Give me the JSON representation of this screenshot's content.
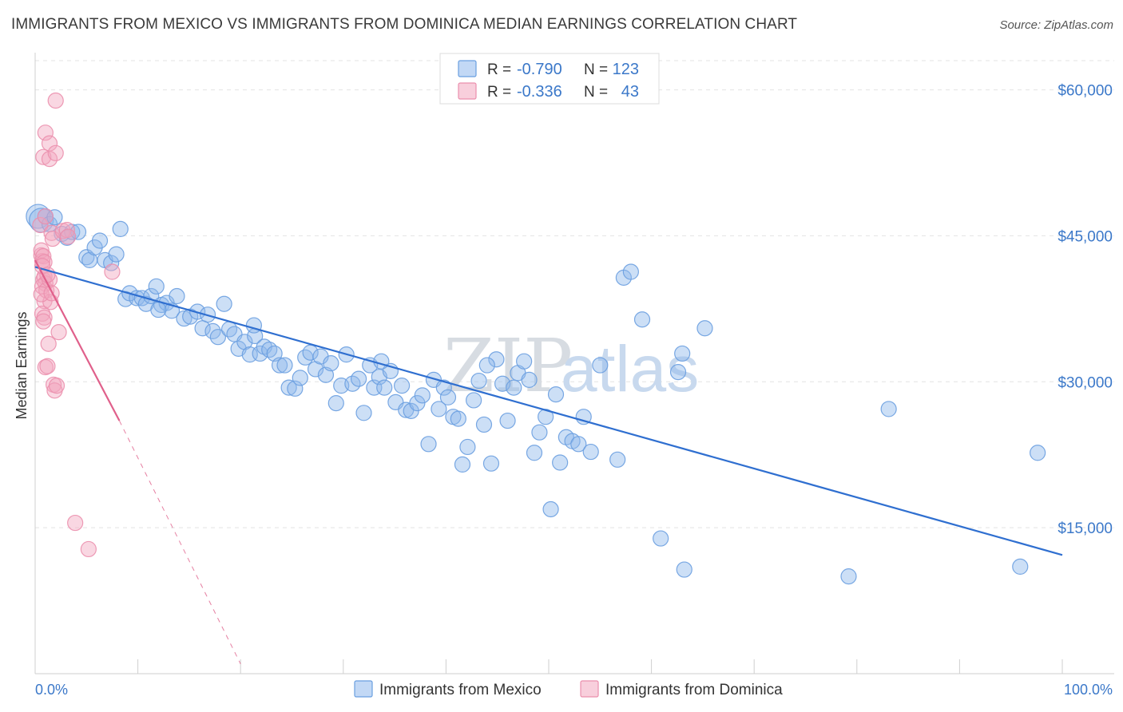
{
  "title": "IMMIGRANTS FROM MEXICO VS IMMIGRANTS FROM DOMINICA MEDIAN EARNINGS CORRELATION CHART",
  "source": "Source: ZipAtlas.com",
  "watermark": {
    "zip": "ZIP",
    "atlas": "atlas"
  },
  "legend_top": [
    {
      "r_label": "R = ",
      "r_value": "-0.790",
      "n_label": "N = ",
      "n_value": "123",
      "color": "#8fb8ec"
    },
    {
      "r_label": "R = ",
      "r_value": "-0.336",
      "n_label": "N = ",
      "n_value": "43",
      "color": "#f2a7bf"
    }
  ],
  "legend_bottom": [
    {
      "label": "Immigrants from Mexico",
      "color": "#8fb8ec"
    },
    {
      "label": "Immigrants from Dominica",
      "color": "#f2a7bf"
    }
  ],
  "chart_data": {
    "type": "scatter",
    "title": "IMMIGRANTS FROM MEXICO VS IMMIGRANTS FROM DOMINICA MEDIAN EARNINGS CORRELATION CHART",
    "xlabel": "",
    "ylabel": "Median Earnings",
    "x_tick_labels": [
      "0.0%",
      "100.0%"
    ],
    "y_tick_labels": [
      "$15,000",
      "$30,000",
      "$45,000",
      "$60,000"
    ],
    "y_ticks": [
      15000,
      30000,
      45000,
      60000
    ],
    "xlim": [
      0,
      100
    ],
    "ylim": [
      0,
      63000
    ],
    "grid": true,
    "series": [
      {
        "name": "Immigrants from Mexico",
        "color": "#8fb8ec",
        "line_color": "#2f6fd0",
        "trend": {
          "x": [
            0,
            100
          ],
          "y": [
            41800,
            12200
          ],
          "dashed_from": null
        },
        "points": [
          [
            0.3,
            47000
          ],
          [
            0.6,
            46600
          ],
          [
            1.0,
            47000
          ],
          [
            1.4,
            46200
          ],
          [
            1.9,
            46900
          ],
          [
            2.6,
            45200
          ],
          [
            3.1,
            44800
          ],
          [
            3.6,
            45400
          ],
          [
            4.2,
            45400
          ],
          [
            5.0,
            42800
          ],
          [
            5.3,
            42500
          ],
          [
            5.8,
            43800
          ],
          [
            6.3,
            44500
          ],
          [
            6.8,
            42500
          ],
          [
            7.4,
            42200
          ],
          [
            7.9,
            43100
          ],
          [
            8.3,
            45700
          ],
          [
            8.8,
            38500
          ],
          [
            9.2,
            39100
          ],
          [
            9.9,
            38600
          ],
          [
            10.4,
            38600
          ],
          [
            10.8,
            38000
          ],
          [
            11.3,
            38800
          ],
          [
            11.8,
            39800
          ],
          [
            12.3,
            37900
          ],
          [
            12.8,
            38100
          ],
          [
            13.3,
            37300
          ],
          [
            13.8,
            38800
          ],
          [
            14.5,
            36500
          ],
          [
            15.1,
            36700
          ],
          [
            15.8,
            37200
          ],
          [
            16.3,
            35500
          ],
          [
            16.8,
            36900
          ],
          [
            17.3,
            35200
          ],
          [
            17.8,
            34600
          ],
          [
            18.4,
            38000
          ],
          [
            18.9,
            35400
          ],
          [
            19.4,
            34900
          ],
          [
            19.8,
            33400
          ],
          [
            20.4,
            34100
          ],
          [
            20.9,
            32800
          ],
          [
            21.4,
            34700
          ],
          [
            21.9,
            32900
          ],
          [
            22.3,
            33600
          ],
          [
            22.8,
            33300
          ],
          [
            23.3,
            32900
          ],
          [
            23.8,
            31700
          ],
          [
            24.3,
            31700
          ],
          [
            24.7,
            29400
          ],
          [
            25.3,
            29300
          ],
          [
            25.8,
            30400
          ],
          [
            26.3,
            32500
          ],
          [
            26.8,
            33000
          ],
          [
            27.3,
            31300
          ],
          [
            27.8,
            32600
          ],
          [
            28.3,
            30700
          ],
          [
            28.8,
            31900
          ],
          [
            29.3,
            27800
          ],
          [
            29.8,
            29600
          ],
          [
            30.3,
            32800
          ],
          [
            30.9,
            29800
          ],
          [
            31.5,
            30300
          ],
          [
            32.0,
            26800
          ],
          [
            32.6,
            31700
          ],
          [
            33.0,
            29400
          ],
          [
            33.5,
            30500
          ],
          [
            34.0,
            29400
          ],
          [
            34.6,
            31100
          ],
          [
            35.1,
            27900
          ],
          [
            35.7,
            29600
          ],
          [
            36.1,
            27100
          ],
          [
            36.6,
            27000
          ],
          [
            37.2,
            27800
          ],
          [
            37.7,
            28600
          ],
          [
            38.3,
            23600
          ],
          [
            38.8,
            30200
          ],
          [
            39.3,
            27200
          ],
          [
            39.8,
            29400
          ],
          [
            40.2,
            28400
          ],
          [
            40.7,
            26400
          ],
          [
            41.2,
            26200
          ],
          [
            41.6,
            21500
          ],
          [
            42.1,
            23300
          ],
          [
            42.7,
            28100
          ],
          [
            43.2,
            30100
          ],
          [
            43.7,
            25600
          ],
          [
            44.4,
            21600
          ],
          [
            44.9,
            32300
          ],
          [
            45.5,
            29800
          ],
          [
            46.0,
            26000
          ],
          [
            46.6,
            29400
          ],
          [
            47.0,
            30900
          ],
          [
            47.6,
            32100
          ],
          [
            48.1,
            30200
          ],
          [
            48.6,
            22700
          ],
          [
            49.1,
            24800
          ],
          [
            49.7,
            26400
          ],
          [
            50.2,
            16900
          ],
          [
            50.7,
            28700
          ],
          [
            51.1,
            21700
          ],
          [
            51.7,
            24300
          ],
          [
            52.3,
            23900
          ],
          [
            52.9,
            23600
          ],
          [
            53.4,
            26400
          ],
          [
            54.1,
            22800
          ],
          [
            55.0,
            31700
          ],
          [
            56.7,
            22000
          ],
          [
            57.3,
            40700
          ],
          [
            58.0,
            41300
          ],
          [
            59.1,
            36400
          ],
          [
            60.9,
            13900
          ],
          [
            62.6,
            31000
          ],
          [
            63.0,
            32900
          ],
          [
            63.2,
            10700
          ],
          [
            65.2,
            35500
          ],
          [
            79.2,
            10000
          ],
          [
            83.1,
            27200
          ],
          [
            95.9,
            11000
          ],
          [
            97.6,
            22700
          ],
          [
            33.7,
            32100
          ],
          [
            21.3,
            35800
          ],
          [
            44.0,
            31700
          ],
          [
            12.0,
            37400
          ]
        ]
      },
      {
        "name": "Immigrants from Dominica",
        "color": "#f2a7bf",
        "line_color": "#e0608b",
        "trend": {
          "x": [
            0,
            8.2,
            20.0
          ],
          "y": [
            42500,
            26000,
            1000
          ],
          "dashed_from": 8.2
        },
        "points": [
          [
            0.5,
            46100
          ],
          [
            0.6,
            43000
          ],
          [
            0.7,
            42400
          ],
          [
            0.8,
            40500
          ],
          [
            0.9,
            40800
          ],
          [
            1.0,
            40100
          ],
          [
            0.7,
            39800
          ],
          [
            0.9,
            38300
          ],
          [
            1.1,
            39400
          ],
          [
            0.7,
            37000
          ],
          [
            0.9,
            36600
          ],
          [
            0.8,
            36200
          ],
          [
            1.0,
            31500
          ],
          [
            1.2,
            31600
          ],
          [
            1.3,
            33900
          ],
          [
            1.4,
            40500
          ],
          [
            1.5,
            38200
          ],
          [
            1.6,
            45300
          ],
          [
            1.7,
            44700
          ],
          [
            1.8,
            29700
          ],
          [
            1.9,
            29100
          ],
          [
            2.3,
            35100
          ],
          [
            2.7,
            45500
          ],
          [
            3.1,
            45600
          ],
          [
            3.2,
            44900
          ],
          [
            3.9,
            15500
          ],
          [
            5.2,
            12800
          ],
          [
            7.5,
            41300
          ],
          [
            2.0,
            58900
          ],
          [
            1.0,
            55600
          ],
          [
            1.4,
            54500
          ],
          [
            0.8,
            53100
          ],
          [
            1.4,
            52900
          ],
          [
            2.0,
            53500
          ],
          [
            0.6,
            43500
          ],
          [
            0.8,
            42900
          ],
          [
            0.9,
            42300
          ],
          [
            0.7,
            41900
          ],
          [
            1.2,
            41000
          ],
          [
            0.6,
            39000
          ],
          [
            1.6,
            39100
          ],
          [
            2.1,
            29600
          ],
          [
            1.0,
            47000
          ]
        ]
      }
    ]
  }
}
